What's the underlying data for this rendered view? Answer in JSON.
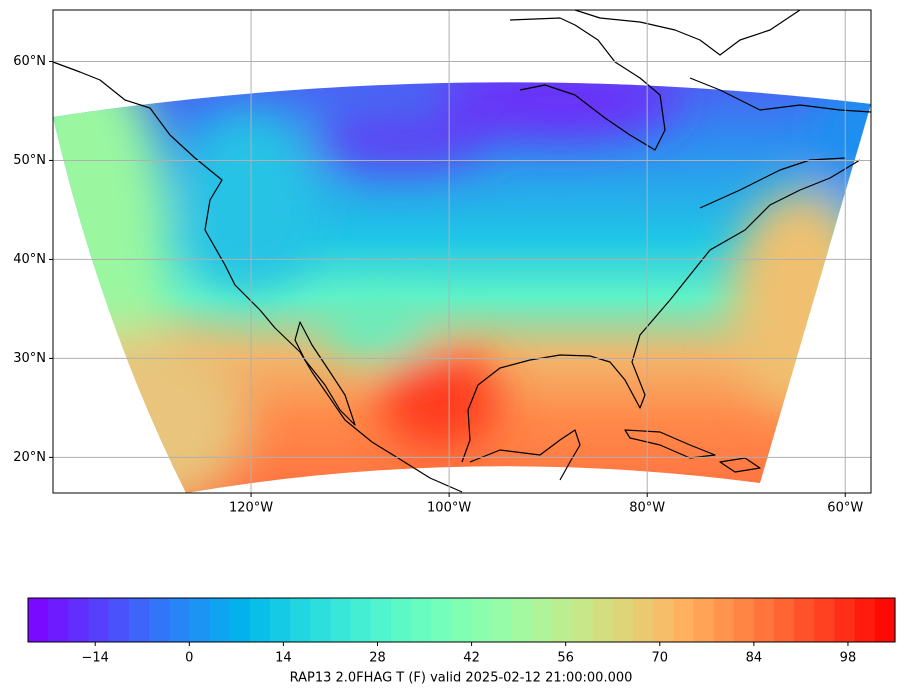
{
  "map": {
    "xlim": [
      -140,
      -57.4
    ],
    "ylim": [
      16.4,
      65.2
    ],
    "xticks": [
      {
        "value": -120,
        "label": "120°W"
      },
      {
        "value": -100,
        "label": "100°W"
      },
      {
        "value": -80,
        "label": "80°W"
      },
      {
        "value": -60,
        "label": "60°W"
      }
    ],
    "yticks": [
      {
        "value": 20,
        "label": "20°N"
      },
      {
        "value": 30,
        "label": "30°N"
      },
      {
        "value": 40,
        "label": "40°N"
      },
      {
        "value": 50,
        "label": "50°N"
      },
      {
        "value": 60,
        "label": "60°N"
      }
    ],
    "grid": true,
    "colorbar": {
      "colormap": "rainbow",
      "clim": [
        -24,
        105
      ],
      "ticks": [
        {
          "value": -14,
          "label": "−14"
        },
        0,
        14,
        28,
        42,
        56,
        70,
        84,
        98
      ],
      "label": "RAP13 2.0FHAG T (F) valid 2025-02-12 21:00:00.000"
    }
  }
}
